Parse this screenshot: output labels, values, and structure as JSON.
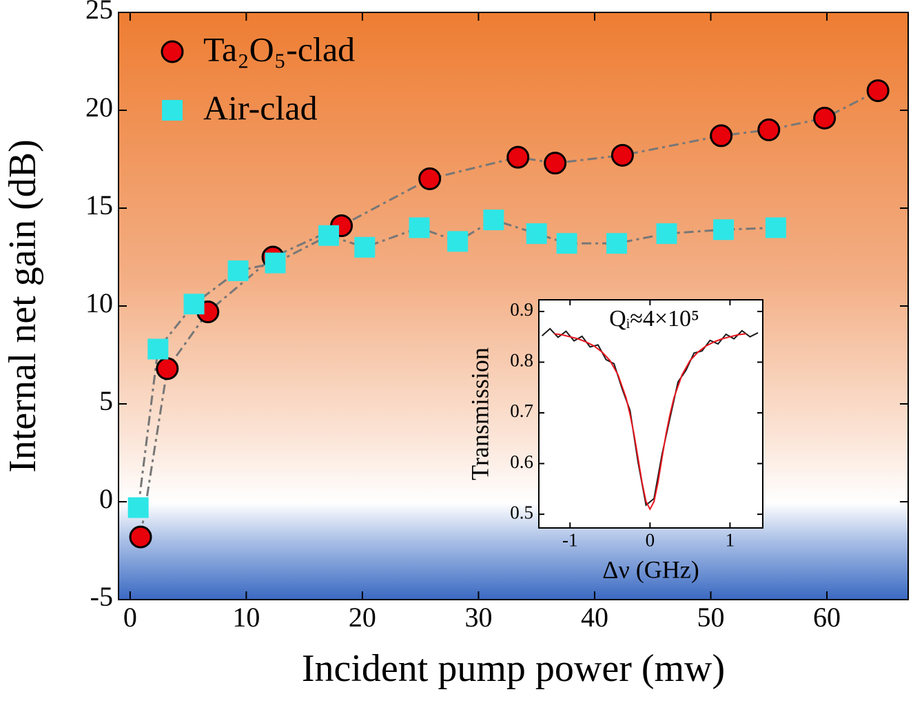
{
  "chart_data": [
    {
      "type": "line",
      "xlabel": "Incident pump power (mw)",
      "ylabel": "Internal net gain (dB)",
      "xlim": [
        -1,
        67
      ],
      "ylim": [
        -5,
        25
      ],
      "xticks": [
        0,
        10,
        20,
        30,
        40,
        50,
        60
      ],
      "yticks": [
        -5,
        0,
        5,
        10,
        15,
        20,
        25
      ],
      "line_color": "#777777",
      "legend": "upper left",
      "series": [
        {
          "name": "Ta₂O₅-clad",
          "color": "#e8000b",
          "marker": "circle",
          "linestyle": "dashdot",
          "x": [
            0.9,
            3.2,
            6.7,
            12.3,
            18.2,
            25.8,
            33.4,
            36.6,
            42.4,
            50.9,
            55.0,
            59.8,
            64.4
          ],
          "values": [
            -1.8,
            6.8,
            9.7,
            12.5,
            14.1,
            16.5,
            17.6,
            17.3,
            17.7,
            18.7,
            19.0,
            19.6,
            21.0
          ]
        },
        {
          "name": "Air-clad",
          "color": "#2ee6e6",
          "marker": "square",
          "linestyle": "dashdot",
          "x": [
            0.7,
            2.4,
            5.5,
            9.3,
            12.5,
            17.1,
            20.2,
            24.9,
            28.2,
            31.3,
            35.0,
            37.6,
            41.9,
            46.2,
            51.1,
            55.6
          ],
          "values": [
            -0.3,
            7.8,
            10.1,
            11.8,
            12.2,
            13.6,
            13.0,
            14.0,
            13.3,
            14.4,
            13.7,
            13.2,
            13.2,
            13.7,
            13.9,
            14.0
          ]
        }
      ]
    },
    {
      "type": "line",
      "xlabel": "Δν (GHz)",
      "ylabel": "Transmission",
      "annotation": "Qᵢ≈4×10⁵",
      "xlim": [
        -1.39,
        1.41
      ],
      "ylim": [
        0.473,
        0.923
      ],
      "xticks": [
        -1,
        0,
        1
      ],
      "yticks": [
        0.5,
        0.6,
        0.7,
        0.8,
        0.9
      ],
      "series": [
        {
          "color": "#1a1a1a",
          "linestyle": "solid",
          "x": [
            -1.35,
            -1.25,
            -1.15,
            -1.05,
            -0.95,
            -0.85,
            -0.75,
            -0.65,
            -0.55,
            -0.45,
            -0.35,
            -0.25,
            -0.15,
            -0.05,
            0.05,
            0.15,
            0.25,
            0.35,
            0.45,
            0.55,
            0.65,
            0.75,
            0.85,
            0.95,
            1.05,
            1.15,
            1.25,
            1.35
          ],
          "values": [
            0.852,
            0.866,
            0.849,
            0.861,
            0.842,
            0.851,
            0.83,
            0.834,
            0.805,
            0.797,
            0.748,
            0.705,
            0.603,
            0.518,
            0.531,
            0.618,
            0.69,
            0.761,
            0.784,
            0.818,
            0.822,
            0.843,
            0.836,
            0.855,
            0.846,
            0.862,
            0.85,
            0.858
          ]
        },
        {
          "color": "#e8141e",
          "linestyle": "solid",
          "x": [
            -1.2,
            -1.1,
            -1.0,
            -0.9,
            -0.8,
            -0.7,
            -0.6,
            -0.5,
            -0.4,
            -0.3,
            -0.25,
            -0.2,
            -0.15,
            -0.1,
            -0.05,
            0,
            0.05,
            0.1,
            0.15,
            0.2,
            0.25,
            0.3,
            0.4,
            0.5,
            0.6,
            0.7,
            0.8,
            0.9,
            1.0,
            1.1,
            1.2
          ],
          "values": [
            0.856,
            0.854,
            0.85,
            0.846,
            0.84,
            0.832,
            0.82,
            0.803,
            0.775,
            0.73,
            0.697,
            0.658,
            0.611,
            0.563,
            0.525,
            0.51,
            0.525,
            0.563,
            0.611,
            0.658,
            0.697,
            0.73,
            0.775,
            0.803,
            0.82,
            0.832,
            0.84,
            0.846,
            0.85,
            0.854,
            0.856
          ]
        }
      ]
    }
  ]
}
